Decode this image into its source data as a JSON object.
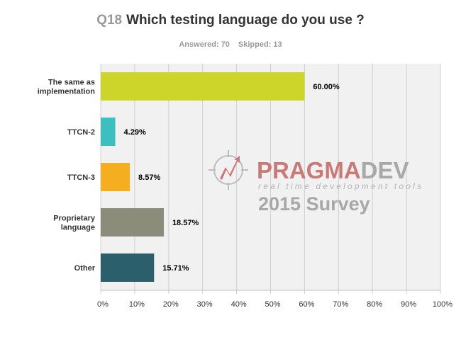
{
  "survey": {
    "question_number": "Q18",
    "question": "Which testing language do you use ?",
    "answered": "Answered: 70",
    "skipped": "Skipped: 13"
  },
  "watermark": {
    "brand_part1": "PRAGMA",
    "brand_part2": "DEV",
    "tagline": "real time development tools",
    "survey_text": "2015 Survey",
    "brand_color": "#c97a78",
    "gray_color": "#a8a8a8"
  },
  "chart_data": {
    "type": "bar",
    "orientation": "horizontal",
    "categories": [
      [
        "The same as",
        "implementation"
      ],
      [
        "TTCN-2"
      ],
      [
        "TTCN-3"
      ],
      [
        "Proprietary",
        "language"
      ],
      [
        "Other"
      ]
    ],
    "values": [
      60.0,
      4.29,
      8.57,
      18.57,
      15.71
    ],
    "value_labels": [
      "60.00%",
      "4.29%",
      "8.57%",
      "18.57%",
      "15.71%"
    ],
    "colors": [
      "#cdd42a",
      "#3dbfbf",
      "#f5ae1f",
      "#8c8c7a",
      "#2b5f6b"
    ],
    "xlim": [
      0,
      100
    ],
    "ticks": [
      0,
      10,
      20,
      30,
      40,
      50,
      60,
      70,
      80,
      90,
      100
    ],
    "tick_labels": [
      "0%",
      "10%",
      "20%",
      "30%",
      "40%",
      "50%",
      "60%",
      "70%",
      "80%",
      "90%",
      "100%"
    ],
    "grid": true,
    "legend": "none"
  }
}
